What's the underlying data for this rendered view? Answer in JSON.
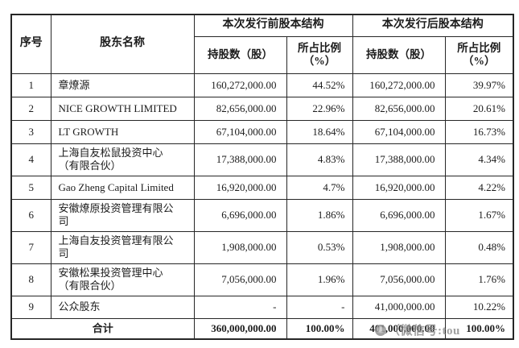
{
  "page": {
    "background": "#ffffff",
    "border_color": "#262626",
    "text_color": "#1c1c1c"
  },
  "table": {
    "header": {
      "col_index": "序号",
      "col_name": "股东名称",
      "group_before": "本次发行前股本结构",
      "group_after": "本次发行后股本结构",
      "col_shares": "持股数（股）",
      "col_ratio": "所占比例\n（%）"
    },
    "rows": [
      {
        "idx": "1",
        "name": "章燎源",
        "before_shares": "160,272,000.00",
        "before_pct": "44.52%",
        "after_shares": "160,272,000.00",
        "after_pct": "39.97%"
      },
      {
        "idx": "2",
        "name": "NICE GROWTH LIMITED",
        "before_shares": "82,656,000.00",
        "before_pct": "22.96%",
        "after_shares": "82,656,000.00",
        "after_pct": "20.61%"
      },
      {
        "idx": "3",
        "name": "LT GROWTH",
        "before_shares": "67,104,000.00",
        "before_pct": "18.64%",
        "after_shares": "67,104,000.00",
        "after_pct": "16.73%"
      },
      {
        "idx": "4",
        "name": "上海自友松鼠投资中心\n（有限合伙）",
        "before_shares": "17,388,000.00",
        "before_pct": "4.83%",
        "after_shares": "17,388,000.00",
        "after_pct": "4.34%"
      },
      {
        "idx": "5",
        "name": "Gao Zheng Capital Limited",
        "before_shares": "16,920,000.00",
        "before_pct": "4.7%",
        "after_shares": "16,920,000.00",
        "after_pct": "4.22%"
      },
      {
        "idx": "6",
        "name": "安徽燎原投资管理有限公\n司",
        "before_shares": "6,696,000.00",
        "before_pct": "1.86%",
        "after_shares": "6,696,000.00",
        "after_pct": "1.67%"
      },
      {
        "idx": "7",
        "name": "上海自友投资管理有限公\n司",
        "before_shares": "1,908,000.00",
        "before_pct": "0.53%",
        "after_shares": "1,908,000.00",
        "after_pct": "0.48%"
      },
      {
        "idx": "8",
        "name": "安徽松果投资管理中心\n（有限合伙）",
        "before_shares": "7,056,000.00",
        "before_pct": "1.96%",
        "after_shares": "7,056,000.00",
        "after_pct": "1.76%"
      },
      {
        "idx": "9",
        "name": "公众股东",
        "before_shares": "-",
        "before_pct": "-",
        "after_shares": "41,000,000.00",
        "after_pct": "10.22%"
      }
    ],
    "total_row": {
      "label": "合计",
      "before_shares": "360,000,000.00",
      "before_pct": "100.00%",
      "after_shares": "401,000,000.00",
      "after_pct": "100.00%"
    }
  },
  "watermark": {
    "text": "（微信号:tou",
    "color": "#8d8d8d"
  }
}
